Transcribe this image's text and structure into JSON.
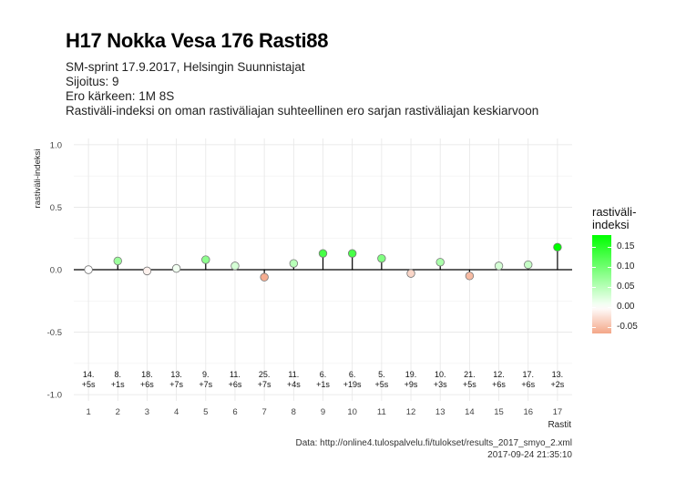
{
  "title": "H17 Nokka Vesa 176 Rasti88",
  "subtitle_lines": [
    "SM-sprint 17.9.2017, Helsingin Suunnistajat",
    "Sijoitus: 9",
    "Ero kärkeen: 1M 8S",
    "Rastiväli-indeksi on oman rastiväliajan suhteellinen ero sarjan rastiväliajan keskiarvoon"
  ],
  "caption_lines": [
    "Data: http://online4.tulospalvelu.fi/tulokset/results_2017_smyo_2.xml",
    "2017-09-24 21:35:10"
  ],
  "chart_data": {
    "type": "scatter",
    "xlabel": "Rastit",
    "ylabel": "rastiväli-indeksi",
    "ylim": [
      -1.0,
      1.0
    ],
    "yticks": [
      -1.0,
      -0.5,
      0.0,
      0.5,
      1.0
    ],
    "ytick_labels": [
      "-1.0",
      "-0.5",
      "0.0",
      "0.5",
      "1.0"
    ],
    "x": [
      1,
      2,
      3,
      4,
      5,
      6,
      7,
      8,
      9,
      10,
      11,
      12,
      13,
      14,
      15,
      16,
      17
    ],
    "values": [
      0.0,
      0.07,
      -0.01,
      0.01,
      0.08,
      0.03,
      -0.06,
      0.05,
      0.13,
      0.13,
      0.09,
      -0.03,
      0.06,
      -0.05,
      0.03,
      0.04,
      0.18
    ],
    "annotations": [
      [
        "14.",
        "+5s"
      ],
      [
        "8.",
        "+1s"
      ],
      [
        "18.",
        "+6s"
      ],
      [
        "13.",
        "+7s"
      ],
      [
        "9.",
        "+7s"
      ],
      [
        "11.",
        "+6s"
      ],
      [
        "25.",
        "+7s"
      ],
      [
        "11.",
        "+4s"
      ],
      [
        "6.",
        "+1s"
      ],
      [
        "6.",
        "+19s"
      ],
      [
        "5.",
        "+5s"
      ],
      [
        "19.",
        "+9s"
      ],
      [
        "10.",
        "+3s"
      ],
      [
        "21.",
        "+5s"
      ],
      [
        "12.",
        "+6s"
      ],
      [
        "17.",
        "+6s"
      ],
      [
        "13.",
        "+2s"
      ]
    ],
    "grid": true,
    "legend": {
      "title_lines": [
        "rastiväli-",
        "indeksi"
      ],
      "ticks": [
        0.15,
        0.1,
        0.05,
        0.0,
        -0.05
      ],
      "tick_labels": [
        "0.15",
        "0.10",
        "0.05",
        "0.00",
        "-0.05"
      ],
      "range": [
        -0.065,
        0.18
      ],
      "placement": "right"
    },
    "colors": {
      "positive": "#00ff00",
      "neutral": "#ffffff",
      "negative": "#f4a688",
      "axis_line": "#000000",
      "grid": "#e6e6e6"
    }
  }
}
